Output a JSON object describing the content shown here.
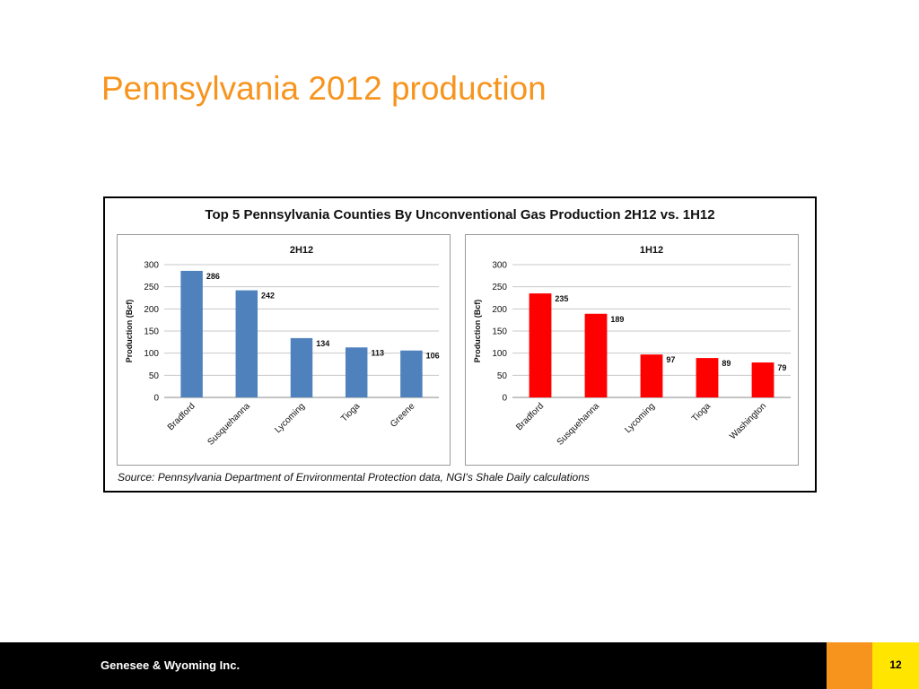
{
  "slide": {
    "title": "Pennsylvania 2012 production"
  },
  "figure": {
    "title": "Top 5 Pennsylvania Counties By Unconventional Gas Production 2H12 vs. 1H12",
    "source": "Source: Pennsylvania Department of Environmental Protection data, NGI's Shale Daily calculations"
  },
  "footer": {
    "company": "Genesee & Wyoming Inc.",
    "page_number": "12"
  },
  "colors": {
    "title": "#f7941d",
    "series_2h12": "#4f81bd",
    "series_1h12": "#ff0000"
  },
  "chart_data": [
    {
      "type": "bar",
      "title": "2H12",
      "ylabel": "Production (Bcf)",
      "xlabel": "",
      "ylim": [
        0,
        300
      ],
      "yticks": [
        0,
        50,
        100,
        150,
        200,
        250,
        300
      ],
      "grid": true,
      "categories": [
        "Bradford",
        "Susquehanna",
        "Lycoming",
        "Tioga",
        "Greene"
      ],
      "values": [
        286,
        242,
        134,
        113,
        106
      ],
      "color": "#4f81bd"
    },
    {
      "type": "bar",
      "title": "1H12",
      "ylabel": "Production (Bcf)",
      "xlabel": "",
      "ylim": [
        0,
        300
      ],
      "yticks": [
        0,
        50,
        100,
        150,
        200,
        250,
        300
      ],
      "grid": true,
      "categories": [
        "Bradford",
        "Susquehanna",
        "Lycoming",
        "Tioga",
        "Washington"
      ],
      "values": [
        235,
        189,
        97,
        89,
        79
      ],
      "color": "#ff0000"
    }
  ]
}
